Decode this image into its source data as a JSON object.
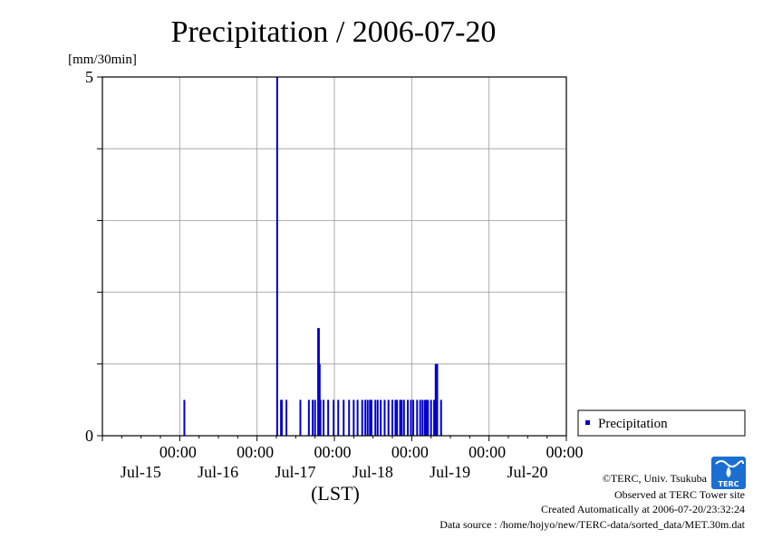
{
  "chart_data": {
    "type": "bar",
    "title": "Precipitation / 2006-07-20",
    "ylabel": "[mm/30min]",
    "xlabel": "(LST)",
    "ylim": [
      0,
      5
    ],
    "y_ticks": [
      "0",
      "5"
    ],
    "y_grid": [
      0,
      1,
      2,
      3,
      4,
      5
    ],
    "x_range_days": [
      14.5,
      20.5
    ],
    "x_ticks": [
      {
        "day": 15.5,
        "time": "00:00",
        "date": "Jul-15"
      },
      {
        "day": 16.5,
        "time": "00:00",
        "date": "Jul-16"
      },
      {
        "day": 17.5,
        "time": "00:00",
        "date": "Jul-17"
      },
      {
        "day": 18.5,
        "time": "00:00",
        "date": "Jul-18"
      },
      {
        "day": 19.5,
        "time": "00:00",
        "date": "Jul-19"
      },
      {
        "day": 20.5,
        "time": "00:00",
        "date": "Jul-20"
      }
    ],
    "grid": true,
    "legend_position": "right",
    "series": [
      {
        "name": "Precipitation",
        "color": "#0000cc",
        "points": [
          {
            "day": 15.56,
            "value": 0.5
          },
          {
            "day": 16.76,
            "value": 5.0
          },
          {
            "day": 16.81,
            "value": 0.5
          },
          {
            "day": 16.82,
            "value": 0.5
          },
          {
            "day": 16.88,
            "value": 0.5
          },
          {
            "day": 17.06,
            "value": 0.5
          },
          {
            "day": 17.17,
            "value": 0.5
          },
          {
            "day": 17.22,
            "value": 0.5
          },
          {
            "day": 17.25,
            "value": 0.5
          },
          {
            "day": 17.29,
            "value": 1.5
          },
          {
            "day": 17.3,
            "value": 1.5
          },
          {
            "day": 17.31,
            "value": 1.0
          },
          {
            "day": 17.32,
            "value": 0.5
          },
          {
            "day": 17.36,
            "value": 0.5
          },
          {
            "day": 17.42,
            "value": 0.5
          },
          {
            "day": 17.49,
            "value": 0.5
          },
          {
            "day": 17.55,
            "value": 0.5
          },
          {
            "day": 17.62,
            "value": 0.5
          },
          {
            "day": 17.69,
            "value": 0.5
          },
          {
            "day": 17.75,
            "value": 0.5
          },
          {
            "day": 17.8,
            "value": 0.5
          },
          {
            "day": 17.86,
            "value": 0.5
          },
          {
            "day": 17.9,
            "value": 0.5
          },
          {
            "day": 17.93,
            "value": 0.5
          },
          {
            "day": 17.96,
            "value": 0.5
          },
          {
            "day": 17.98,
            "value": 0.5
          },
          {
            "day": 18.03,
            "value": 0.5
          },
          {
            "day": 18.06,
            "value": 0.5
          },
          {
            "day": 18.1,
            "value": 0.5
          },
          {
            "day": 18.15,
            "value": 0.5
          },
          {
            "day": 18.2,
            "value": 0.5
          },
          {
            "day": 18.25,
            "value": 0.5
          },
          {
            "day": 18.29,
            "value": 0.5
          },
          {
            "day": 18.31,
            "value": 0.5
          },
          {
            "day": 18.35,
            "value": 0.5
          },
          {
            "day": 18.37,
            "value": 0.5
          },
          {
            "day": 18.4,
            "value": 0.5
          },
          {
            "day": 18.45,
            "value": 0.5
          },
          {
            "day": 18.49,
            "value": 0.5
          },
          {
            "day": 18.52,
            "value": 0.5
          },
          {
            "day": 18.57,
            "value": 0.5
          },
          {
            "day": 18.61,
            "value": 0.5
          },
          {
            "day": 18.64,
            "value": 0.5
          },
          {
            "day": 18.67,
            "value": 0.5
          },
          {
            "day": 18.69,
            "value": 0.5
          },
          {
            "day": 18.71,
            "value": 0.5
          },
          {
            "day": 18.75,
            "value": 0.5
          },
          {
            "day": 18.79,
            "value": 0.5
          },
          {
            "day": 18.81,
            "value": 1.0
          },
          {
            "day": 18.82,
            "value": 1.0
          },
          {
            "day": 18.83,
            "value": 1.0
          },
          {
            "day": 18.88,
            "value": 0.5
          }
        ]
      }
    ]
  },
  "legend": {
    "label": "Precipitation"
  },
  "credits": {
    "copyright": "©TERC, Univ. Tsukuba",
    "observed": "Observed at TERC Tower site",
    "created": "Created Automatically at 2006-07-20/23:32:24",
    "source": "Data source : /home/hojyo/new/TERC-data/sorted_data/MET.30m.dat"
  },
  "logo": {
    "text": "TERC",
    "color": "#1a6fd0"
  }
}
